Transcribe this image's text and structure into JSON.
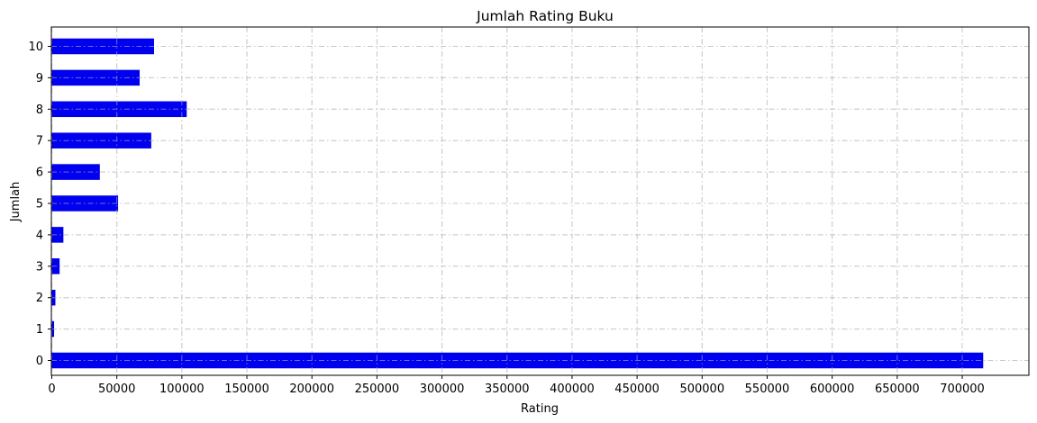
{
  "chart_data": {
    "type": "bar",
    "orientation": "horizontal",
    "title": "Jumlah Rating Buku",
    "xlabel": "Rating",
    "ylabel": "Jumlah",
    "categories": [
      "0",
      "1",
      "2",
      "3",
      "4",
      "5",
      "6",
      "7",
      "8",
      "9",
      "10"
    ],
    "values": [
      716109,
      1770,
      2759,
      5996,
      8904,
      50974,
      36924,
      76457,
      103736,
      67541,
      78610
    ],
    "xlim": [
      0,
      752000
    ],
    "xticks": [
      0,
      50000,
      100000,
      150000,
      200000,
      250000,
      300000,
      350000,
      400000,
      450000,
      500000,
      550000,
      600000,
      650000,
      700000
    ],
    "grid": true,
    "bar_color": "#0000ee"
  }
}
